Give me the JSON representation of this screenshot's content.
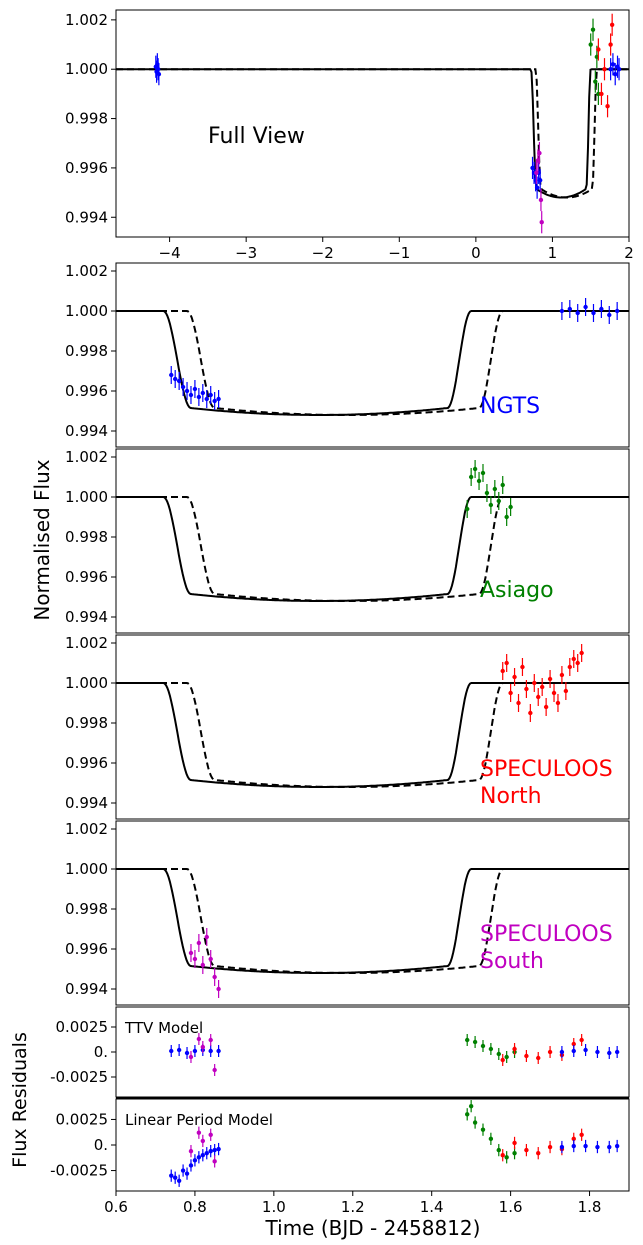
{
  "figure": {
    "ylabel_main": "Normalised Flux",
    "ylabel_resid": "Flux Residuals",
    "xlabel": "Time  (BJD - 2458812)"
  },
  "colors": {
    "NGTS": "#0000ff",
    "Asiago": "#008000",
    "North": "#ff0000",
    "South": "#c000c0",
    "model": "#000000"
  },
  "chart_data": [
    {
      "type": "line",
      "panel": "full-view",
      "label": "Full View",
      "xlim": [
        -4.7,
        2.0
      ],
      "ylim": [
        0.9932,
        1.0024
      ],
      "xticks": [
        -4,
        -3,
        -2,
        -1,
        0,
        1,
        2
      ],
      "xtick_labels": [
        "−4",
        "−3",
        "−2",
        "−1",
        "0",
        "1",
        "2"
      ],
      "yticks": [
        0.994,
        0.996,
        0.998,
        1.0,
        1.002
      ],
      "ytick_labels": [
        "0.994",
        "0.996",
        "0.998",
        "1.000",
        "1.002"
      ],
      "transit_depth": 0.9948,
      "series": [
        {
          "style": "solid",
          "ingress": [
            0.72,
            0.79
          ],
          "egress": [
            1.44,
            1.5
          ]
        },
        {
          "style": "dashed",
          "ingress": [
            0.78,
            0.85
          ],
          "egress": [
            1.52,
            1.58
          ]
        }
      ],
      "data_groups": [
        {
          "instrument": "NGTS",
          "t": [
            -4.18,
            -4.17,
            -4.16,
            -4.15,
            -4.14
          ],
          "f": [
            1.0001,
            0.9999,
            1.0002,
            1.0,
            0.9998
          ]
        },
        {
          "instrument": "NGTS",
          "t": [
            0.74,
            0.76,
            0.78,
            0.8,
            0.82,
            0.84
          ],
          "f": [
            0.996,
            0.9958,
            0.9955,
            0.9952,
            0.9958,
            0.9955
          ]
        },
        {
          "instrument": "South",
          "t": [
            0.79,
            0.81,
            0.83,
            0.85,
            0.86
          ],
          "f": [
            0.9958,
            0.9963,
            0.9966,
            0.9947,
            0.9938
          ]
        },
        {
          "instrument": "Asiago",
          "t": [
            1.5,
            1.53,
            1.56,
            1.58,
            1.6
          ],
          "f": [
            1.001,
            1.0016,
            0.9995,
            1.0005,
            0.999
          ]
        },
        {
          "instrument": "North",
          "t": [
            1.6,
            1.64,
            1.68,
            1.72,
            1.76,
            1.78
          ],
          "f": [
            1.0008,
            0.999,
            1.0,
            0.9985,
            1.001,
            1.0018
          ]
        },
        {
          "instrument": "NGTS",
          "t": [
            1.76,
            1.79,
            1.82,
            1.85,
            1.87
          ],
          "f": [
            1.0,
            1.0002,
            0.9998,
            1.0001,
            1.0
          ]
        }
      ]
    },
    {
      "type": "line",
      "panel": "NGTS",
      "label": "NGTS",
      "label_color": "#0000ff",
      "xlim": [
        0.6,
        1.9
      ],
      "ylim": [
        0.9932,
        1.0024
      ],
      "yticks": [
        0.994,
        0.996,
        0.998,
        1.0,
        1.002
      ],
      "ytick_labels": [
        "0.994",
        "0.996",
        "0.998",
        "1.000",
        "1.002"
      ],
      "data_groups": [
        {
          "instrument": "NGTS",
          "t": [
            0.74,
            0.75,
            0.76,
            0.77,
            0.78,
            0.79,
            0.8,
            0.81,
            0.82,
            0.83,
            0.84,
            0.85,
            0.86
          ],
          "f": [
            0.9968,
            0.9966,
            0.9965,
            0.9962,
            0.996,
            0.9958,
            0.9961,
            0.9957,
            0.9959,
            0.9956,
            0.9958,
            0.9955,
            0.9956
          ]
        },
        {
          "instrument": "NGTS",
          "t": [
            1.73,
            1.75,
            1.77,
            1.79,
            1.81,
            1.83,
            1.85,
            1.87
          ],
          "f": [
            1.0,
            1.0001,
            0.9999,
            1.0002,
            0.9999,
            1.0001,
            0.9998,
            1.0
          ]
        }
      ]
    },
    {
      "type": "line",
      "panel": "Asiago",
      "label": "Asiago",
      "label_color": "#008000",
      "xlim": [
        0.6,
        1.9
      ],
      "ylim": [
        0.9932,
        1.0024
      ],
      "yticks": [
        0.994,
        0.996,
        0.998,
        1.0,
        1.002
      ],
      "ytick_labels": [
        "0.994",
        "0.996",
        "0.998",
        "1.000",
        "1.002"
      ],
      "data_groups": [
        {
          "instrument": "Asiago",
          "t": [
            1.49,
            1.5,
            1.51,
            1.52,
            1.53,
            1.54,
            1.55,
            1.56,
            1.57,
            1.58,
            1.59,
            1.6
          ],
          "f": [
            0.9994,
            1.001,
            1.0014,
            1.0008,
            1.0012,
            1.0002,
            0.9996,
            1.0004,
            0.9998,
            1.0006,
            0.999,
            0.9995
          ]
        }
      ]
    },
    {
      "type": "line",
      "panel": "SPECULOOS-North",
      "label": "SPECULOOS",
      "label2": "North",
      "label_color": "#ff0000",
      "xlim": [
        0.6,
        1.9
      ],
      "ylim": [
        0.9932,
        1.0024
      ],
      "yticks": [
        0.994,
        0.996,
        0.998,
        1.0,
        1.002
      ],
      "ytick_labels": [
        "0.994",
        "0.996",
        "0.998",
        "1.000",
        "1.002"
      ],
      "data_groups": [
        {
          "instrument": "North",
          "t": [
            1.58,
            1.59,
            1.6,
            1.61,
            1.62,
            1.63,
            1.64,
            1.65,
            1.66,
            1.67,
            1.68,
            1.69,
            1.7,
            1.71,
            1.72,
            1.73,
            1.74,
            1.75,
            1.76,
            1.77,
            1.78
          ],
          "f": [
            1.0006,
            1.001,
            0.9995,
            1.0003,
            0.999,
            1.0008,
            0.9997,
            0.9985,
            1.0,
            0.9993,
            0.9998,
            0.9988,
            1.0002,
            0.9995,
            0.999,
            1.0004,
            0.9996,
            1.0008,
            1.0012,
            1.001,
            1.0015
          ]
        }
      ]
    },
    {
      "type": "line",
      "panel": "SPECULOOS-South",
      "label": "SPECULOOS",
      "label2": "South",
      "label_color": "#c000c0",
      "xlim": [
        0.6,
        1.9
      ],
      "ylim": [
        0.9932,
        1.0024
      ],
      "yticks": [
        0.994,
        0.996,
        0.998,
        1.0,
        1.002
      ],
      "ytick_labels": [
        "0.994",
        "0.996",
        "0.998",
        "1.000",
        "1.002"
      ],
      "data_groups": [
        {
          "instrument": "South",
          "t": [
            0.79,
            0.8,
            0.81,
            0.82,
            0.83,
            0.84,
            0.85,
            0.86
          ],
          "f": [
            0.9958,
            0.9955,
            0.9963,
            0.9952,
            0.9966,
            0.9955,
            0.9946,
            0.994
          ]
        }
      ]
    },
    {
      "type": "scatter",
      "panel": "residuals-ttv",
      "label": "TTV Model",
      "xlim": [
        0.6,
        1.9
      ],
      "ylim": [
        -0.0045,
        0.0045
      ],
      "yticks": [
        0.0025,
        0.0,
        -0.0025
      ],
      "ytick_labels": [
        "0.0025",
        "0.",
        "-0.0025"
      ],
      "data_groups": [
        {
          "instrument": "NGTS",
          "t": [
            0.74,
            0.76,
            0.78,
            0.8,
            0.82,
            0.84,
            0.86
          ],
          "f": [
            0.0001,
            0.0002,
            -0.0001,
            0.0001,
            0.0002,
            0.0001,
            0.0001
          ]
        },
        {
          "instrument": "South",
          "t": [
            0.79,
            0.81,
            0.82,
            0.84,
            0.85
          ],
          "f": [
            -0.0005,
            0.0013,
            0.0005,
            0.0012,
            -0.0018
          ]
        },
        {
          "instrument": "Asiago",
          "t": [
            1.49,
            1.51,
            1.53,
            1.55,
            1.57,
            1.59,
            1.61
          ],
          "f": [
            0.0012,
            0.001,
            0.0006,
            0.0003,
            -0.0002,
            -0.0005,
            0.0
          ]
        },
        {
          "instrument": "North",
          "t": [
            1.58,
            1.61,
            1.64,
            1.67,
            1.7,
            1.73,
            1.76,
            1.78
          ],
          "f": [
            -0.0008,
            0.0003,
            -0.0004,
            -0.0006,
            0.0,
            -0.0003,
            0.0008,
            0.0012
          ]
        },
        {
          "instrument": "NGTS",
          "t": [
            1.73,
            1.76,
            1.79,
            1.82,
            1.85,
            1.87
          ],
          "f": [
            0.0,
            0.0001,
            0.0002,
            0.0,
            -0.0001,
            0.0
          ]
        }
      ]
    },
    {
      "type": "scatter",
      "panel": "residuals-linear",
      "label": "Linear Period Model",
      "xlim": [
        0.6,
        1.9
      ],
      "ylim": [
        -0.0045,
        0.0045
      ],
      "xticks": [
        0.6,
        0.8,
        1.0,
        1.2,
        1.4,
        1.6,
        1.8
      ],
      "xtick_labels": [
        "0.6",
        "0.8",
        "1.0",
        "1.2",
        "1.4",
        "1.6",
        "1.8"
      ],
      "yticks": [
        0.0025,
        0.0,
        -0.0025
      ],
      "ytick_labels": [
        "0.0025",
        "0.",
        "-0.0025"
      ],
      "data_groups": [
        {
          "instrument": "NGTS",
          "t": [
            0.74,
            0.75,
            0.76,
            0.77,
            0.78,
            0.79,
            0.8,
            0.81,
            0.82,
            0.83,
            0.84,
            0.85,
            0.86
          ],
          "f": [
            -0.003,
            -0.0032,
            -0.0035,
            -0.0025,
            -0.0028,
            -0.002,
            -0.0015,
            -0.0012,
            -0.001,
            -0.0008,
            -0.0006,
            -0.0005,
            -0.0004
          ]
        },
        {
          "instrument": "South",
          "t": [
            0.79,
            0.81,
            0.82,
            0.84,
            0.85
          ],
          "f": [
            -0.0006,
            0.0012,
            0.0004,
            0.001,
            -0.0016
          ]
        },
        {
          "instrument": "Asiago",
          "t": [
            1.49,
            1.5,
            1.51,
            1.53,
            1.55,
            1.57,
            1.59,
            1.61
          ],
          "f": [
            0.003,
            0.0038,
            0.0022,
            0.0015,
            0.0006,
            -0.0005,
            -0.0012,
            -0.0008
          ]
        },
        {
          "instrument": "North",
          "t": [
            1.58,
            1.61,
            1.64,
            1.67,
            1.7,
            1.73,
            1.76,
            1.78
          ],
          "f": [
            -0.001,
            0.0002,
            -0.0005,
            -0.0008,
            -0.0002,
            -0.0004,
            0.0006,
            0.001
          ]
        },
        {
          "instrument": "NGTS",
          "t": [
            1.73,
            1.76,
            1.79,
            1.82,
            1.85,
            1.87
          ],
          "f": [
            -0.0002,
            -0.0001,
            -0.0001,
            -0.0002,
            -0.0002,
            -0.0001
          ]
        }
      ]
    }
  ]
}
